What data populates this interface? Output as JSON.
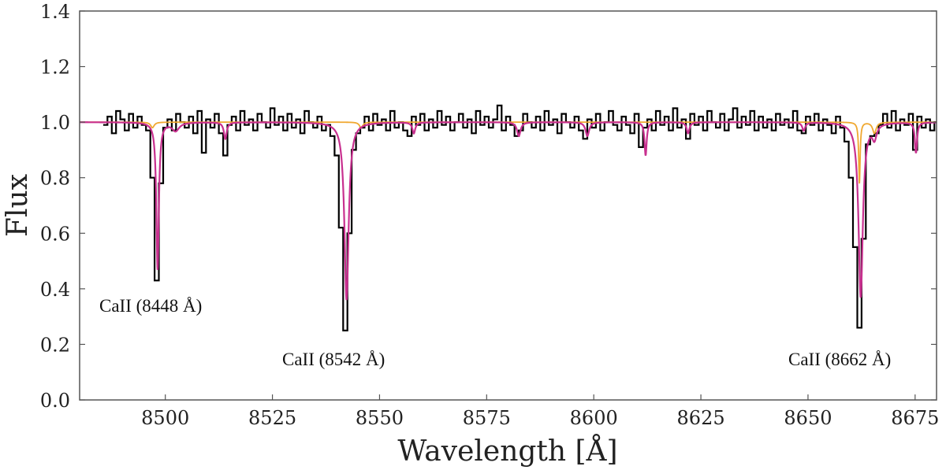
{
  "chart_data": {
    "type": "line",
    "title": "",
    "xlabel": "Wavelength [Å]",
    "ylabel": "Flux",
    "xlim": [
      8480,
      8680
    ],
    "ylim": [
      0.0,
      1.4
    ],
    "xticks": [
      8500,
      8525,
      8550,
      8575,
      8600,
      8625,
      8650,
      8675
    ],
    "yticks": [
      0.0,
      0.2,
      0.4,
      0.6,
      0.8,
      1.0,
      1.2,
      1.4
    ],
    "ytick_labels": [
      "0.0",
      "0.2",
      "0.4",
      "0.6",
      "0.8",
      "1.0",
      "1.2",
      "1.4"
    ],
    "grid": false,
    "legend": "none",
    "colors": {
      "observed": "#000000",
      "model_total": "#c8308f",
      "model_component": "#f0a830"
    },
    "annotations": [
      {
        "text": "CaII (8448 Å)",
        "x": 8498,
        "y": 0.36
      },
      {
        "text": "CaII (8542 Å)",
        "x": 8542,
        "y": 0.16
      },
      {
        "text": "CaII (8662 Å)",
        "x": 8662,
        "y": 0.16
      }
    ],
    "observed": {
      "x_start": 8486,
      "x_step": 1,
      "flux": [
        0.99,
        1.02,
        0.96,
        1.04,
        1.01,
        0.97,
        1.03,
        0.98,
        1.02,
        0.99,
        0.97,
        0.8,
        0.43,
        0.78,
        0.98,
        1.01,
        0.97,
        1.03,
        1.0,
        0.98,
        1.02,
        0.96,
        1.04,
        0.89,
        1.01,
        0.98,
        1.03,
        0.96,
        0.88,
        0.99,
        1.02,
        0.97,
        1.04,
        0.99,
        1.01,
        0.97,
        1.03,
        1.0,
        0.98,
        1.05,
        0.99,
        1.02,
        0.97,
        1.03,
        0.98,
        1.01,
        0.96,
        1.04,
        1.0,
        0.98,
        1.02,
        0.97,
        0.99,
        0.95,
        0.88,
        0.62,
        0.25,
        0.6,
        0.9,
        0.96,
        0.98,
        1.02,
        0.97,
        1.03,
        0.99,
        1.01,
        0.97,
        1.04,
        0.98,
        1.0,
        0.97,
        0.95,
        1.02,
        0.99,
        1.03,
        0.97,
        1.01,
        0.98,
        1.04,
        0.99,
        1.02,
        0.97,
        1.0,
        1.03,
        0.98,
        1.01,
        0.96,
        1.04,
        0.99,
        1.02,
        0.98,
        1.01,
        1.06,
        0.97,
        1.02,
        0.99,
        0.95,
        0.97,
        1.03,
        1.0,
        0.98,
        1.02,
        0.97,
        1.04,
        0.99,
        1.01,
        0.96,
        1.03,
        1.0,
        0.98,
        1.02,
        0.97,
        0.94,
        1.01,
        0.98,
        1.03,
        0.97,
        1.0,
        1.04,
        0.99,
        0.97,
        1.02,
        0.99,
        0.96,
        1.03,
        0.91,
        0.98,
        1.01,
        0.97,
        1.04,
        0.99,
        1.02,
        0.97,
        1.05,
        0.98,
        1.01,
        0.94,
        1.03,
        0.99,
        1.02,
        0.97,
        1.04,
        1.0,
        0.98,
        1.03,
        0.97,
        1.01,
        1.05,
        0.98,
        1.02,
        0.99,
        1.04,
        0.97,
        1.02,
        0.98,
        1.01,
        0.97,
        1.03,
        0.99,
        1.01,
        0.98,
        1.04,
        0.97,
        0.96,
        1.02,
        0.99,
        1.03,
        0.97,
        1.01,
        0.99,
        0.96,
        1.02,
        0.98,
        0.93,
        0.8,
        0.55,
        0.26,
        0.58,
        0.92,
        0.95,
        0.96,
        0.99,
        1.03,
        0.98,
        1.04,
        0.97,
        1.01,
        0.99,
        1.03,
        0.9,
        1.02,
        0.98,
        1.01,
        0.97,
        1.0
      ]
    },
    "model_total_lines": [
      {
        "center": 8498.2,
        "depth": 0.53,
        "width": 0.35
      },
      {
        "center": 8502.4,
        "depth": 0.03,
        "width": 1.0
      },
      {
        "center": 8514.0,
        "depth": 0.06,
        "width": 0.4
      },
      {
        "center": 8542.3,
        "depth": 0.64,
        "width": 0.6
      },
      {
        "center": 8558.0,
        "depth": 0.04,
        "width": 0.4
      },
      {
        "center": 8582.5,
        "depth": 0.05,
        "width": 0.5
      },
      {
        "center": 8598.5,
        "depth": 0.05,
        "width": 0.5
      },
      {
        "center": 8612.1,
        "depth": 0.12,
        "width": 0.3
      },
      {
        "center": 8622.0,
        "depth": 0.04,
        "width": 0.4
      },
      {
        "center": 8649.0,
        "depth": 0.03,
        "width": 0.4
      },
      {
        "center": 8662.3,
        "depth": 0.63,
        "width": 0.6
      },
      {
        "center": 8665.5,
        "depth": 0.05,
        "width": 0.6
      },
      {
        "center": 8675.2,
        "depth": 0.11,
        "width": 0.3
      }
    ],
    "model_component_lines": [
      {
        "center": 8497.0,
        "depth": 0.02,
        "width": 0.5
      },
      {
        "center": 8545.7,
        "depth": 0.02,
        "width": 0.5
      },
      {
        "center": 8662.0,
        "depth": 0.22,
        "width": 0.2
      },
      {
        "center": 8665.5,
        "depth": 0.04,
        "width": 0.5
      }
    ]
  }
}
